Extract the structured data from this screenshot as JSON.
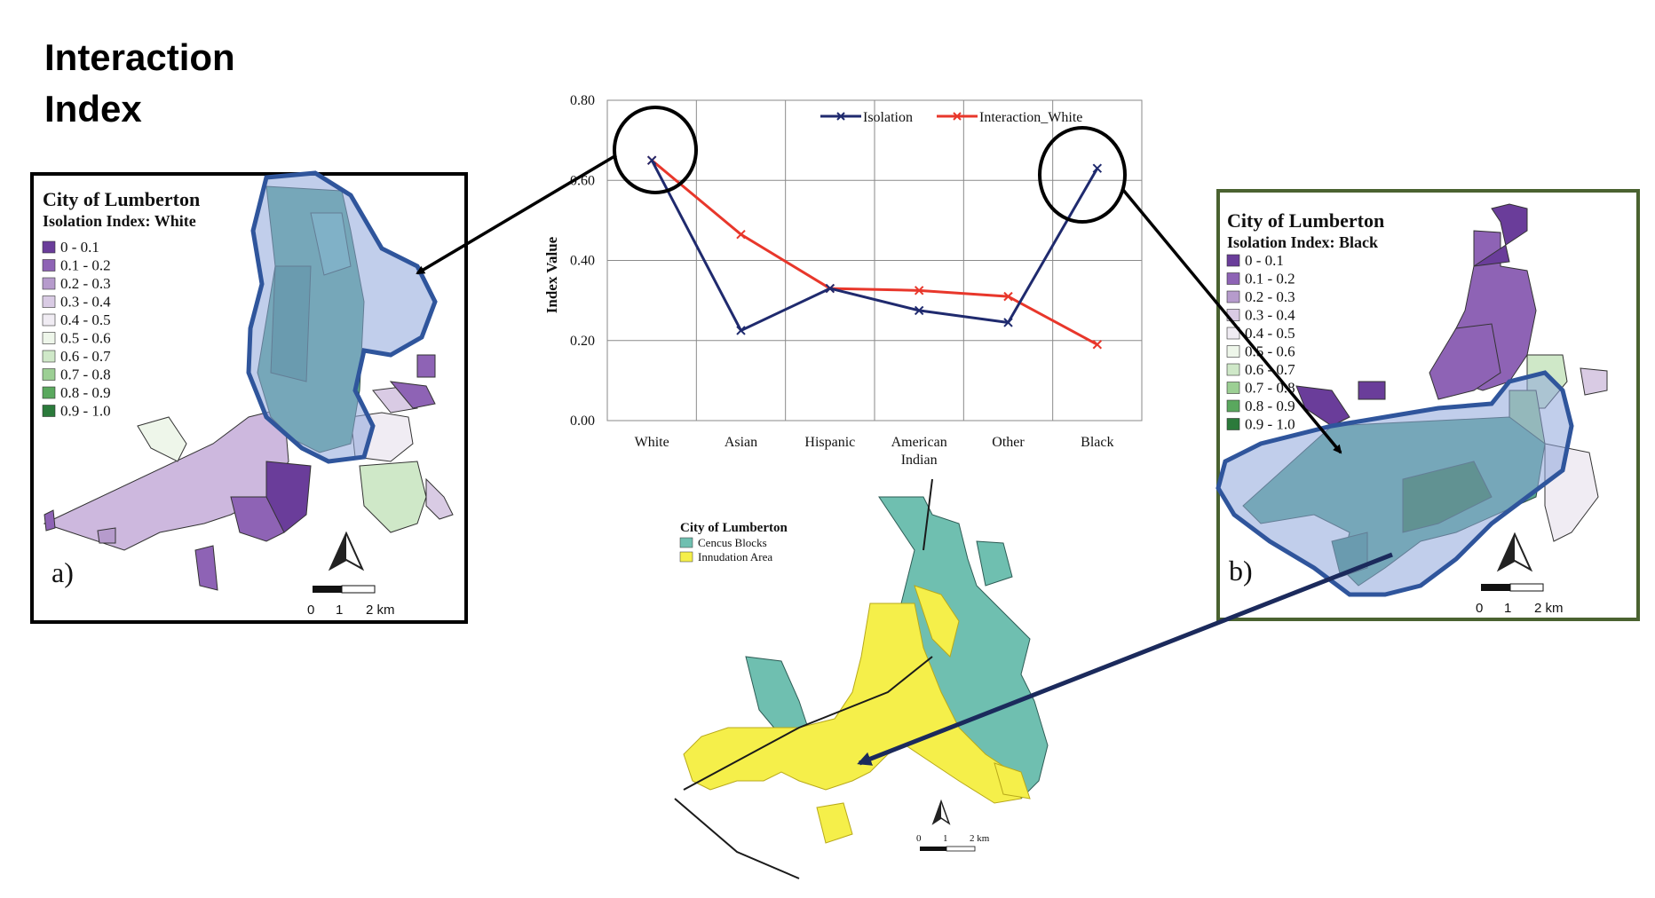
{
  "page": {
    "title_line1": "Interaction",
    "title_line2": "Index"
  },
  "map_a": {
    "title": "City of Lumberton",
    "subtitle": "Isolation Index: White",
    "panel_label": "a)",
    "scale_labels": [
      "0",
      "1",
      "2 km"
    ],
    "border_color": "#000000",
    "legend": [
      {
        "label": "0 - 0.1",
        "color": "#6a3d9a"
      },
      {
        "label": "0.1 - 0.2",
        "color": "#8e63b5"
      },
      {
        "label": "0.2 - 0.3",
        "color": "#b69bcc"
      },
      {
        "label": "0.3 - 0.4",
        "color": "#d9cbe4"
      },
      {
        "label": "0.4 - 0.5",
        "color": "#f0ecf3"
      },
      {
        "label": "0.5 - 0.6",
        "color": "#eef6ea"
      },
      {
        "label": "0.6 - 0.7",
        "color": "#cfe8c8"
      },
      {
        "label": "0.7 - 0.8",
        "color": "#9ccf94"
      },
      {
        "label": "0.8 - 0.9",
        "color": "#5aa85e"
      },
      {
        "label": "0.9 - 1.0",
        "color": "#2b7a3b"
      }
    ]
  },
  "map_b": {
    "title": "City of Lumberton",
    "subtitle": "Isolation Index: Black",
    "panel_label": "b)",
    "scale_labels": [
      "0",
      "1",
      "2 km"
    ],
    "border_color": "#4a6230",
    "legend": [
      {
        "label": "0 - 0.1",
        "color": "#6a3d9a"
      },
      {
        "label": "0.1 - 0.2",
        "color": "#8e63b5"
      },
      {
        "label": "0.2 - 0.3",
        "color": "#b69bcc"
      },
      {
        "label": "0.3 - 0.4",
        "color": "#d9cbe4"
      },
      {
        "label": "0.4 - 0.5",
        "color": "#f0ecf3"
      },
      {
        "label": "0.5 - 0.6",
        "color": "#eef6ea"
      },
      {
        "label": "0.6 - 0.7",
        "color": "#cfe8c8"
      },
      {
        "label": "0.7 - 0.8",
        "color": "#9ccf94"
      },
      {
        "label": "0.8 - 0.9",
        "color": "#5aa85e"
      },
      {
        "label": "0.9 - 1.0",
        "color": "#2b7a3b"
      }
    ]
  },
  "map_c": {
    "title": "City of Lumberton",
    "legend": [
      {
        "label": "Cencus Blocks",
        "color": "#6fbfb0"
      },
      {
        "label": "Innudation Area",
        "color": "#f5ef4a"
      }
    ],
    "scale_labels": [
      "0",
      "1",
      "2 km"
    ]
  },
  "chart_data": {
    "type": "line",
    "categories": [
      "White",
      "Asian",
      "Hispanic",
      "American Indian",
      "Other",
      "Black"
    ],
    "category_lines": [
      [
        "White"
      ],
      [
        "Asian"
      ],
      [
        "Hispanic"
      ],
      [
        "American",
        "Indian"
      ],
      [
        "Other"
      ],
      [
        "Black"
      ]
    ],
    "series": [
      {
        "name": "Isolation",
        "values": [
          0.65,
          0.225,
          0.33,
          0.275,
          0.245,
          0.63
        ],
        "color": "#1f2a6e"
      },
      {
        "name": "Interaction_White",
        "values": [
          0.65,
          0.465,
          0.33,
          0.325,
          0.31,
          0.19
        ],
        "color": "#e8372b"
      }
    ],
    "ylabel": "Index Value",
    "ylim": [
      0,
      0.8
    ],
    "yticks": [
      "0.00",
      "0.20",
      "0.40",
      "0.60",
      "0.80"
    ],
    "grid": true,
    "legend_position": "top-right"
  },
  "colors": {
    "highlight_fill": "#8ea6da",
    "highlight_stroke": "#2f559c",
    "arrow_black": "#000000",
    "arrow_navy": "#1b2a5c"
  }
}
